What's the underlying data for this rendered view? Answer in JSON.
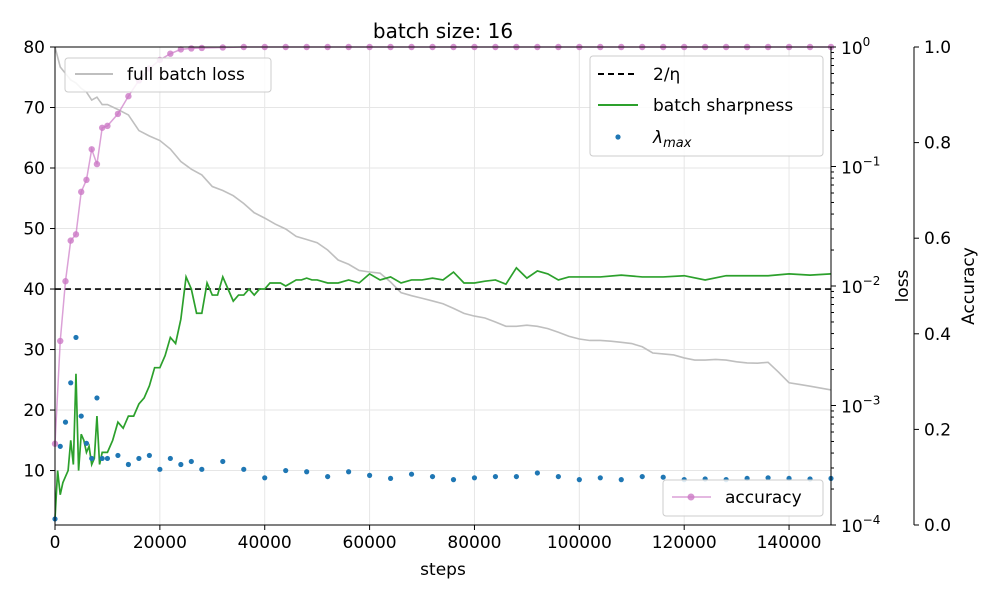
{
  "chart_data": {
    "type": "line",
    "title": "batch size: 16",
    "xlabel": "steps",
    "ylabel": "",
    "ylabel_loss": "loss",
    "ylabel_acc": "Accuracy",
    "xlim": [
      0,
      148000
    ],
    "ylim": [
      1,
      80
    ],
    "ylim_loss": [
      0.0001,
      1
    ],
    "ylim_acc": [
      0,
      1
    ],
    "loss_scale": "log",
    "grid": true,
    "x_ticks": [
      0,
      20000,
      40000,
      60000,
      80000,
      100000,
      120000,
      140000
    ],
    "x_tick_labels": [
      "0",
      "20000",
      "40000",
      "60000",
      "80000",
      "100000",
      "120000",
      "140000"
    ],
    "y_ticks": [
      10,
      20,
      30,
      40,
      50,
      60,
      70,
      80
    ],
    "y_tick_labels": [
      "10",
      "20",
      "30",
      "40",
      "50",
      "60",
      "70",
      "80"
    ],
    "loss_ticks": [
      0.0001,
      0.001,
      0.01,
      0.1,
      1
    ],
    "loss_tick_base": [
      "10",
      "10",
      "10",
      "10",
      "10"
    ],
    "loss_tick_exp": [
      "−4",
      "−3",
      "−2",
      "−1",
      "0"
    ],
    "acc_ticks": [
      0,
      0.2,
      0.4,
      0.6,
      0.8,
      1.0
    ],
    "acc_tick_labels": [
      "0.0",
      "0.2",
      "0.4",
      "0.6",
      "0.8",
      "1.0"
    ],
    "legends": {
      "loss": {
        "placement": "top-left",
        "label": "full batch loss"
      },
      "main": {
        "placement": "top-right",
        "threshold_label": "2/η",
        "sharpness_label": "batch sharpness",
        "lambda_label": "λ",
        "lambda_sub": "max"
      },
      "acc": {
        "placement": "bottom-right",
        "label": "accuracy"
      }
    },
    "colors": {
      "loss": "#bfbfbf",
      "sharpness": "#2ca02c",
      "lambda": "#1f77b4",
      "accuracy": "#cc79c6",
      "threshold": "#000000"
    },
    "threshold": {
      "name": "2/η",
      "y": 40
    },
    "series": [
      {
        "name": "full batch loss",
        "axis": "loss",
        "x": [
          0,
          1000,
          2000,
          3000,
          4000,
          5000,
          6000,
          7000,
          8000,
          9000,
          10000,
          12000,
          14000,
          16000,
          18000,
          20000,
          22000,
          24000,
          26000,
          28000,
          30000,
          32000,
          34000,
          36000,
          38000,
          40000,
          42000,
          44000,
          46000,
          48000,
          50000,
          52000,
          54000,
          56000,
          58000,
          60000,
          62000,
          64000,
          66000,
          68000,
          70000,
          72000,
          74000,
          76000,
          78000,
          80000,
          82000,
          84000,
          86000,
          88000,
          90000,
          92000,
          94000,
          96000,
          98000,
          100000,
          102000,
          104000,
          106000,
          108000,
          110000,
          112000,
          114000,
          116000,
          118000,
          120000,
          122000,
          124000,
          126000,
          128000,
          130000,
          132000,
          134000,
          136000,
          138000,
          140000,
          142000,
          144000,
          146000,
          148000
        ],
        "values": [
          1.0,
          0.68,
          0.6,
          0.53,
          0.5,
          0.45,
          0.42,
          0.36,
          0.38,
          0.33,
          0.33,
          0.3,
          0.27,
          0.2,
          0.18,
          0.165,
          0.14,
          0.11,
          0.095,
          0.085,
          0.068,
          0.063,
          0.057,
          0.049,
          0.041,
          0.037,
          0.033,
          0.03,
          0.026,
          0.0245,
          0.023,
          0.02,
          0.0165,
          0.0152,
          0.0135,
          0.0131,
          0.0128,
          0.0108,
          0.0088,
          0.0083,
          0.0079,
          0.0075,
          0.0071,
          0.0065,
          0.0059,
          0.0056,
          0.0054,
          0.005,
          0.0046,
          0.0046,
          0.0047,
          0.0046,
          0.0044,
          0.0041,
          0.0038,
          0.0036,
          0.0035,
          0.0035,
          0.00345,
          0.00338,
          0.0033,
          0.0031,
          0.00275,
          0.0027,
          0.00265,
          0.0025,
          0.0024,
          0.0024,
          0.00243,
          0.0024,
          0.00232,
          0.00227,
          0.00226,
          0.0023,
          0.0019,
          0.00155,
          0.0015,
          0.00145,
          0.0014,
          0.00135
        ]
      },
      {
        "name": "batch sharpness",
        "axis": "left",
        "x": [
          0,
          500,
          1000,
          1500,
          2000,
          2500,
          3000,
          3500,
          4000,
          4500,
          5000,
          5500,
          6000,
          6500,
          7000,
          7500,
          8000,
          8500,
          9000,
          9500,
          10000,
          11000,
          12000,
          13000,
          14000,
          15000,
          16000,
          17000,
          18000,
          19000,
          20000,
          21000,
          22000,
          23000,
          24000,
          25000,
          26000,
          27000,
          28000,
          29000,
          30000,
          31000,
          32000,
          33000,
          34000,
          35000,
          36000,
          37000,
          38000,
          39000,
          40000,
          41000,
          42000,
          43000,
          44000,
          45000,
          46000,
          47000,
          48000,
          49000,
          50000,
          52000,
          54000,
          56000,
          58000,
          60000,
          62000,
          64000,
          66000,
          68000,
          70000,
          72000,
          74000,
          76000,
          78000,
          80000,
          82000,
          84000,
          86000,
          88000,
          90000,
          92000,
          94000,
          96000,
          98000,
          100000,
          104000,
          108000,
          112000,
          116000,
          120000,
          124000,
          128000,
          132000,
          136000,
          140000,
          144000,
          148000
        ],
        "values": [
          2,
          10,
          6,
          8,
          9,
          10,
          15,
          11,
          26,
          10,
          16,
          15,
          13,
          14,
          11,
          12,
          19,
          11,
          13,
          13,
          13,
          15,
          18,
          17,
          19,
          19,
          21,
          22,
          24,
          27,
          27,
          29,
          32,
          31,
          35,
          42,
          40,
          36,
          36,
          41,
          39,
          39,
          42,
          40,
          38,
          39,
          39,
          40,
          39,
          40,
          40,
          41,
          41,
          41,
          40.5,
          41,
          41.5,
          41.5,
          41.8,
          41.5,
          41.5,
          41,
          41,
          41.5,
          41,
          42.5,
          41.5,
          42,
          41,
          41.5,
          41.5,
          41.8,
          41.5,
          42.8,
          41,
          41,
          41.3,
          41.5,
          40.8,
          43.5,
          41.8,
          43,
          42.5,
          41.5,
          42,
          42,
          42,
          42.3,
          42,
          42,
          42.2,
          41.5,
          42.2,
          42.2,
          42.2,
          42.5,
          42.3,
          42.5
        ]
      },
      {
        "name": "λmax",
        "axis": "left",
        "x": [
          0,
          1000,
          2000,
          3000,
          4000,
          5000,
          6000,
          7000,
          8000,
          9000,
          10000,
          12000,
          14000,
          16000,
          18000,
          20000,
          22000,
          24000,
          26000,
          28000,
          32000,
          36000,
          40000,
          44000,
          48000,
          52000,
          56000,
          60000,
          64000,
          68000,
          72000,
          76000,
          80000,
          84000,
          88000,
          92000,
          96000,
          100000,
          104000,
          108000,
          112000,
          116000,
          120000,
          124000,
          128000,
          132000,
          136000,
          140000,
          144000,
          148000
        ],
        "values": [
          2,
          14,
          18,
          24.5,
          32,
          19,
          14.5,
          12,
          22,
          12,
          12,
          12.5,
          11,
          12,
          12.5,
          10.2,
          12,
          11,
          11.5,
          10.2,
          11.5,
          10.2,
          8.8,
          10,
          9.8,
          9,
          9.8,
          9.2,
          8.7,
          9.4,
          9,
          8.5,
          8.8,
          9,
          9,
          9.6,
          9,
          8.5,
          8.8,
          8.5,
          9,
          8.9,
          8.5,
          8.6,
          8.5,
          8.7,
          8.8,
          8.7,
          8.6,
          8.7
        ]
      },
      {
        "name": "accuracy",
        "axis": "acc",
        "x": [
          0,
          1000,
          2000,
          3000,
          4000,
          5000,
          6000,
          7000,
          8000,
          9000,
          10000,
          12000,
          14000,
          16000,
          18000,
          20000,
          22000,
          24000,
          26000,
          28000,
          32000,
          36000,
          40000,
          44000,
          48000,
          52000,
          56000,
          60000,
          64000,
          68000,
          72000,
          76000,
          80000,
          84000,
          88000,
          92000,
          96000,
          100000,
          104000,
          108000,
          112000,
          116000,
          120000,
          124000,
          128000,
          132000,
          136000,
          140000,
          144000,
          148000
        ],
        "values": [
          0.17,
          0.385,
          0.51,
          0.595,
          0.608,
          0.697,
          0.722,
          0.786,
          0.755,
          0.831,
          0.835,
          0.86,
          0.897,
          0.93,
          0.955,
          0.973,
          0.986,
          0.995,
          0.997,
          0.998,
          0.999,
          1.0,
          1.0,
          1.0,
          1.0,
          1.0,
          1.0,
          1.0,
          1.0,
          1.0,
          1.0,
          1.0,
          1.0,
          1.0,
          1.0,
          1.0,
          1.0,
          1.0,
          1.0,
          1.0,
          1.0,
          1.0,
          1.0,
          1.0,
          1.0,
          1.0,
          1.0,
          1.0,
          1.0,
          1.0
        ]
      }
    ]
  }
}
